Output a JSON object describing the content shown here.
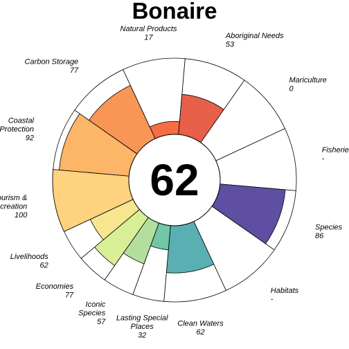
{
  "chart_data": {
    "type": "flower",
    "title": "Bonaire",
    "center_score": "62",
    "ylim": [
      0,
      100
    ],
    "petals": [
      {
        "name": "Natural Products",
        "name_lines": [
          "Natural Products"
        ],
        "value_label": "17",
        "value": 17,
        "weight": 1,
        "color": "#f46d43"
      },
      {
        "name": "Aboriginal Needs",
        "name_lines": [
          "Aboriginal Needs"
        ],
        "value_label": "53",
        "value": 53,
        "weight": 1,
        "color": "#e8604a"
      },
      {
        "name": "Mariculture",
        "name_lines": [
          "Mariculture"
        ],
        "value_label": "0",
        "value": 0,
        "weight": 1,
        "color": "#f46d43"
      },
      {
        "name": "Fisheries",
        "name_lines": [
          "Fisheries"
        ],
        "value_label": "-",
        "value": null,
        "weight": 1,
        "color": "#f46d43"
      },
      {
        "name": "Species",
        "name_lines": [
          "Species"
        ],
        "value_label": "86",
        "value": 86,
        "weight": 1,
        "color": "#5e4fa2"
      },
      {
        "name": "Habitats",
        "name_lines": [
          "Habitats"
        ],
        "value_label": "-",
        "value": null,
        "weight": 1,
        "color": "#3288bd"
      },
      {
        "name": "Clean Waters",
        "name_lines": [
          "Clean Waters"
        ],
        "value_label": "62",
        "value": 62,
        "weight": 1,
        "color": "#5aafb3"
      },
      {
        "name": "Lasting Special Places",
        "name_lines": [
          "Lasting Special",
          "Places"
        ],
        "value_label": "32",
        "value": 32,
        "weight": 0.5,
        "color": "#72c7a5"
      },
      {
        "name": "Iconic Species",
        "name_lines": [
          "Iconic",
          "Species"
        ],
        "value_label": "57",
        "value": 57,
        "weight": 0.5,
        "color": "#b2df9e"
      },
      {
        "name": "Economies",
        "name_lines": [
          "Economies"
        ],
        "value_label": "77",
        "value": 77,
        "weight": 0.5,
        "color": "#d8ee97"
      },
      {
        "name": "Livelihoods",
        "name_lines": [
          "Livelihoods"
        ],
        "value_label": "62",
        "value": 62,
        "weight": 0.5,
        "color": "#f6e690"
      },
      {
        "name": "Tourism & Recreation",
        "name_lines": [
          "Tourism &",
          "Recreation"
        ],
        "value_label": "100",
        "value": 100,
        "weight": 1,
        "color": "#fed27e"
      },
      {
        "name": "Coastal Protection",
        "name_lines": [
          "Coastal",
          "Protection"
        ],
        "value_label": "92",
        "value": 92,
        "weight": 1,
        "color": "#fdb567"
      },
      {
        "name": "Carbon Storage",
        "name_lines": [
          "Carbon Storage"
        ],
        "value_label": "77",
        "value": 77,
        "weight": 1,
        "color": "#f99656"
      }
    ]
  }
}
